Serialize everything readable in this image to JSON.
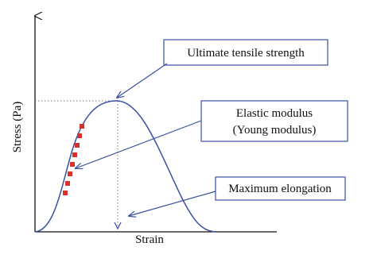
{
  "axes": {
    "y_label": "Stress (Pa)",
    "x_label": "Strain"
  },
  "callouts": [
    {
      "lines": [
        "Ultimate tensile strength"
      ]
    },
    {
      "lines": [
        "Elastic modulus",
        "(Young modulus)"
      ]
    },
    {
      "lines": [
        "Maximum elongation"
      ]
    }
  ]
}
